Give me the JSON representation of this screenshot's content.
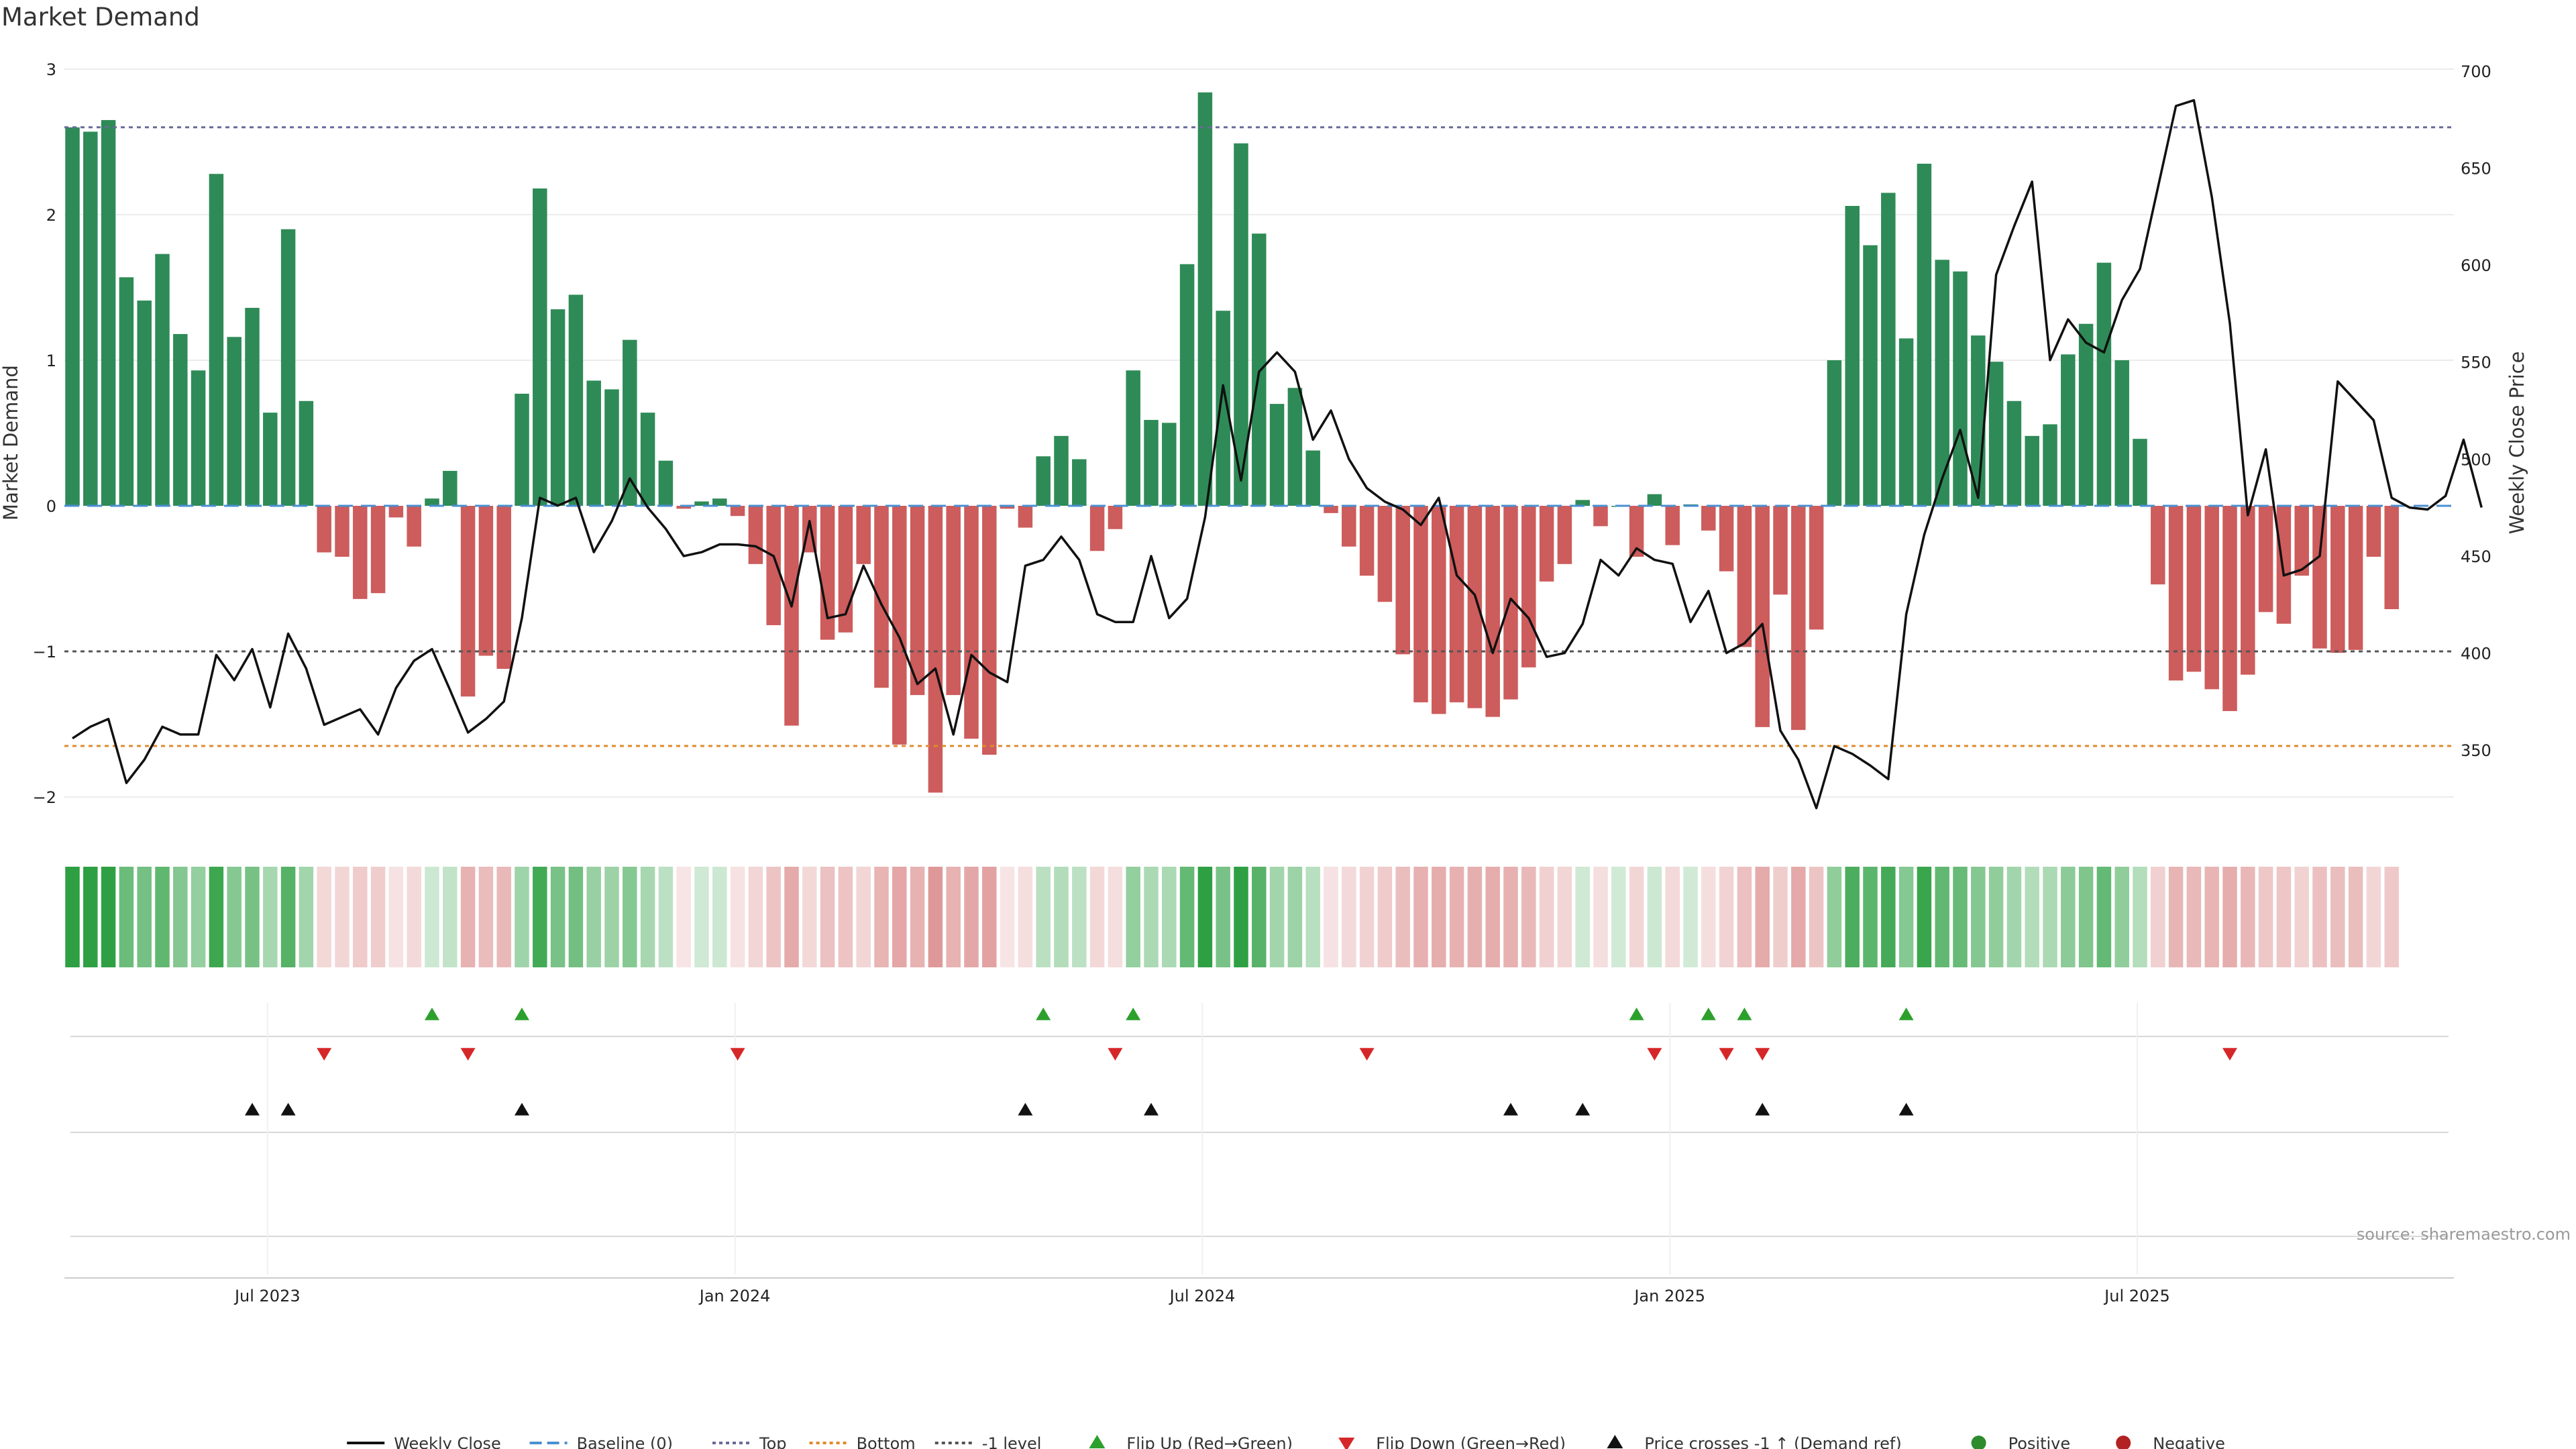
{
  "chart_data": {
    "type": "bar",
    "title": "Market Demand",
    "ylabel": "Market Demand",
    "y2label": "Weekly Close Price",
    "ylim": [
      -2.2,
      3
    ],
    "y2lim": [
      317,
      700
    ],
    "yticks": [
      {
        "value": 3,
        "label": "3"
      },
      {
        "value": 2,
        "label": "2"
      },
      {
        "value": 1,
        "label": "1"
      },
      {
        "value": 0,
        "label": "0"
      },
      {
        "value": -1,
        "label": "−1"
      },
      {
        "value": -2,
        "label": "−2"
      }
    ],
    "y2ticks": [
      {
        "value": 700,
        "label": "700"
      },
      {
        "value": 650,
        "label": "650"
      },
      {
        "value": 600,
        "label": "600"
      },
      {
        "value": 550,
        "label": "550"
      },
      {
        "value": 500,
        "label": "500"
      },
      {
        "value": 450,
        "label": "450"
      },
      {
        "value": 400,
        "label": "400"
      },
      {
        "value": 350,
        "label": "350"
      }
    ],
    "xticks": [
      {
        "week": 11,
        "label": "Jul 2023"
      },
      {
        "week": 37,
        "label": "Jan 2024"
      },
      {
        "week": 63,
        "label": "Jul 2024"
      },
      {
        "week": 89,
        "label": "Jan 2025"
      },
      {
        "week": 115,
        "label": "Jul 2025"
      }
    ],
    "ref_lines": {
      "top": 2.6,
      "minus_one": -1,
      "bottom": -1.65,
      "baseline": 0
    },
    "demand": [
      2.6,
      2.57,
      2.65,
      1.57,
      1.41,
      1.73,
      1.18,
      0.93,
      2.28,
      1.16,
      1.36,
      0.64,
      1.9,
      0.72,
      -0.32,
      -0.35,
      -0.64,
      -0.6,
      -0.08,
      -0.28,
      0.05,
      0.24,
      -1.31,
      -1.03,
      -1.12,
      0.77,
      2.18,
      1.35,
      1.45,
      0.86,
      0.8,
      1.14,
      0.64,
      0.31,
      -0.02,
      0.03,
      0.05,
      -0.07,
      -0.4,
      -0.82,
      -1.51,
      -0.32,
      -0.92,
      -0.87,
      -0.4,
      -1.25,
      -1.64,
      -1.3,
      -1.97,
      -1.3,
      -1.6,
      -1.71,
      -0.02,
      -0.15,
      0.34,
      0.48,
      0.32,
      -0.31,
      -0.16,
      0.93,
      0.59,
      0.57,
      1.66,
      2.84,
      1.34,
      2.49,
      1.87,
      0.7,
      0.81,
      0.38,
      -0.05,
      -0.28,
      -0.48,
      -0.66,
      -1.02,
      -1.35,
      -1.43,
      -1.35,
      -1.39,
      -1.45,
      -1.33,
      -1.11,
      -0.52,
      -0.4,
      0.04,
      -0.14,
      0.0,
      -0.35,
      0.08,
      -0.27,
      0.01,
      -0.17,
      -0.45,
      -0.97,
      -1.52,
      -0.61,
      -1.54,
      -0.85,
      1.0,
      2.06,
      1.79,
      2.15,
      1.15,
      2.35,
      1.69,
      1.61,
      1.17,
      0.99,
      0.72,
      0.48,
      0.56,
      1.04,
      1.25,
      1.67,
      1.0,
      0.46,
      -0.54,
      -1.2,
      -1.14,
      -1.26,
      -1.41,
      -1.16,
      -0.73,
      -0.81,
      -0.48,
      -0.98,
      -1.01,
      -0.99,
      -0.35,
      -0.71
    ],
    "weekly_close": [
      356,
      362,
      366,
      333,
      345,
      362,
      358,
      358,
      399,
      386,
      402,
      372,
      410,
      392,
      363,
      367,
      371,
      358,
      382,
      396,
      402,
      381,
      359,
      366,
      375,
      418,
      480,
      476,
      480,
      452,
      468,
      490,
      475,
      464,
      450,
      452,
      456,
      456,
      455,
      450,
      424,
      468,
      418,
      420,
      445,
      425,
      408,
      384,
      392,
      358,
      399,
      390,
      385,
      445,
      448,
      460,
      448,
      420,
      416,
      416,
      450,
      418,
      428,
      470,
      538,
      489,
      545,
      555,
      545,
      510,
      525,
      500,
      485,
      478,
      474,
      466,
      480,
      440,
      430,
      400,
      428,
      418,
      398,
      400,
      415,
      448,
      440,
      454,
      448,
      446,
      416,
      432,
      400,
      405,
      415,
      360,
      345,
      320,
      352,
      348,
      342,
      335,
      420,
      461,
      490,
      515,
      480,
      595,
      620,
      643,
      551,
      572,
      560,
      555,
      582,
      598,
      640,
      682,
      685,
      635,
      570,
      471,
      505,
      440,
      443,
      450,
      540,
      530,
      520,
      480,
      475,
      474,
      481,
      510,
      475
    ],
    "flip_up_weeks": [
      20,
      25,
      54,
      59,
      87,
      91,
      93,
      102
    ],
    "flip_down_weeks": [
      14,
      22,
      37,
      58,
      72,
      88,
      92,
      94,
      120
    ],
    "price_cross_weeks": [
      10,
      12,
      25,
      53,
      60,
      80,
      84,
      94,
      102
    ],
    "legend": [
      {
        "label": "Weekly Close",
        "kind": "line",
        "color": "#111111"
      },
      {
        "label": "Baseline (0)",
        "kind": "dash",
        "color": "#4a8fd0"
      },
      {
        "label": "Top",
        "kind": "dot",
        "color": "#6a6a9a"
      },
      {
        "label": "Bottom",
        "kind": "dot",
        "color": "#e08a2a"
      },
      {
        "label": "-1 level",
        "kind": "dot",
        "color": "#555555"
      },
      {
        "label": "Flip Up (Red→Green)",
        "kind": "tri-up",
        "color": "#2ca02c"
      },
      {
        "label": "Flip Down (Green→Red)",
        "kind": "tri-down",
        "color": "#d62728"
      },
      {
        "label": "Price crosses -1 ↑ (Demand ref)",
        "kind": "tri-up",
        "color": "#111111"
      },
      {
        "label": "Positive",
        "kind": "dot-marker",
        "color": "#2e8b2e"
      },
      {
        "label": "Negative",
        "kind": "dot-marker",
        "color": "#b22222"
      }
    ],
    "source": "source: sharemaestro.com"
  },
  "colors": {
    "positive": "#2e8b57",
    "negative": "#cd5c5c",
    "price": "#111111"
  }
}
